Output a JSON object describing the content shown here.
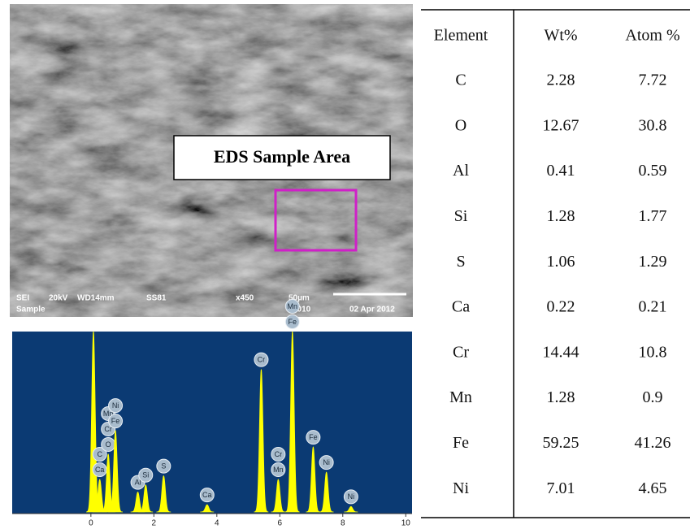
{
  "image": {
    "label": "EDS Sample Area",
    "info": [
      "SEI",
      "20kV",
      "WD14mm",
      "SS81",
      "x450",
      "50µm",
      "Sample",
      "0010",
      "02 Apr 2012"
    ]
  },
  "chart_data": {
    "type": "spectrum",
    "xlim": [
      -2.5,
      10.2
    ],
    "xticks": [
      0,
      2,
      4,
      6,
      8,
      10
    ],
    "ylim": [
      0,
      100
    ],
    "color": "#ffff00",
    "background": "#0b3a73",
    "peaks": [
      {
        "x": 0.08,
        "height": 100,
        "labels": []
      },
      {
        "x": 0.28,
        "height": 18,
        "labels": [
          "C",
          "Ca"
        ]
      },
      {
        "x": 0.55,
        "height": 32,
        "labels": [
          "Mn",
          "Cr",
          "O"
        ]
      },
      {
        "x": 0.78,
        "height": 45,
        "labels": [
          "Ni",
          "Fe"
        ]
      },
      {
        "x": 1.49,
        "height": 11,
        "labels": [
          "Al"
        ]
      },
      {
        "x": 1.74,
        "height": 15,
        "labels": [
          "Si"
        ]
      },
      {
        "x": 2.31,
        "height": 20,
        "labels": [
          "S"
        ]
      },
      {
        "x": 3.69,
        "height": 4,
        "labels": [
          "Ca"
        ]
      },
      {
        "x": 5.41,
        "height": 79,
        "labels": [
          "Cr"
        ]
      },
      {
        "x": 5.95,
        "height": 18,
        "labels": [
          "Cr",
          "Mn"
        ]
      },
      {
        "x": 6.4,
        "height": 100,
        "labels": [
          "Mn",
          "Fe"
        ]
      },
      {
        "x": 7.06,
        "height": 36,
        "labels": [
          "Fe"
        ]
      },
      {
        "x": 7.48,
        "height": 22,
        "labels": [
          "Ni"
        ]
      },
      {
        "x": 8.26,
        "height": 3,
        "labels": [
          "Ni"
        ]
      }
    ]
  },
  "table": {
    "header": [
      "Element",
      "Wt%",
      "Atom %"
    ],
    "rows": [
      [
        "C",
        "2.28",
        "7.72"
      ],
      [
        "O",
        "12.67",
        "30.8"
      ],
      [
        "Al",
        "0.41",
        "0.59"
      ],
      [
        "Si",
        "1.28",
        "1.77"
      ],
      [
        "S",
        "1.06",
        "1.29"
      ],
      [
        "Ca",
        "0.22",
        "0.21"
      ],
      [
        "Cr",
        "14.44",
        "10.8"
      ],
      [
        "Mn",
        "1.28",
        "0.9"
      ],
      [
        "Fe",
        "59.25",
        "41.26"
      ],
      [
        "Ni",
        "7.01",
        "4.65"
      ]
    ]
  }
}
